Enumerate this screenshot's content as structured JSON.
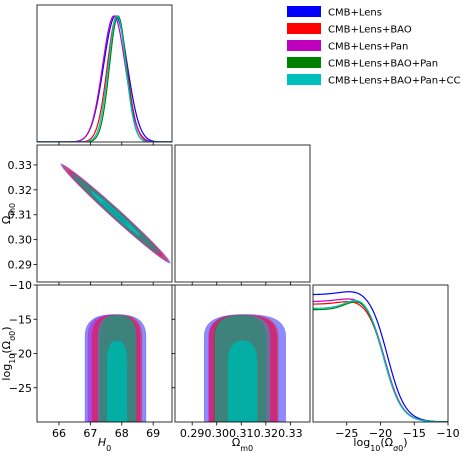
{
  "chart_data": {
    "type": "corner",
    "series": [
      {
        "name": "CMB+Lens",
        "color": "#0000ff",
        "H0_mean": 67.8,
        "H0_sd": 0.38,
        "Om_mean": 0.3115,
        "Om_sd": 0.0065,
        "logOs_plateau": 0.93
      },
      {
        "name": "CMB+Lens+BAO",
        "color": "#ff0000",
        "H0_mean": 67.85,
        "H0_sd": 0.31,
        "Om_mean": 0.311,
        "Om_sd": 0.0055,
        "logOs_plateau": 0.86
      },
      {
        "name": "CMB+Lens+Pan",
        "color": "#bf00bf",
        "H0_mean": 67.75,
        "H0_sd": 0.36,
        "Om_mean": 0.3105,
        "Om_sd": 0.006,
        "logOs_plateau": 0.88
      },
      {
        "name": "CMB+Lens+BAO+Pan",
        "color": "#008000",
        "H0_mean": 67.88,
        "H0_sd": 0.27,
        "Om_mean": 0.3095,
        "Om_sd": 0.005,
        "logOs_plateau": 0.82
      },
      {
        "name": "CMB+Lens+BAO+Pan+CC",
        "color": "#00bfbf",
        "H0_mean": 67.85,
        "H0_sd": 0.28,
        "Om_mean": 0.3105,
        "Om_sd": 0.0052,
        "logOs_plateau": 0.83
      }
    ],
    "params": [
      "H0",
      "Om0",
      "log10Os0"
    ],
    "axes": {
      "H0": {
        "label": "H_0",
        "range": [
          65.3,
          69.6
        ],
        "ticks": [
          66,
          67,
          68,
          69
        ]
      },
      "Om0": {
        "label": "Ω_m0",
        "range": [
          0.283,
          0.338
        ],
        "ticks": [
          0.29,
          0.3,
          0.31,
          0.32,
          0.33
        ]
      },
      "log10Os0": {
        "label": "log_10(Ω_σ0)",
        "range": [
          -30,
          -10
        ],
        "ticks": [
          -25,
          -20,
          -15,
          -10
        ]
      }
    },
    "grid": false,
    "legend_position": "top-right",
    "contour_levels": [
      "68%",
      "95%"
    ]
  }
}
